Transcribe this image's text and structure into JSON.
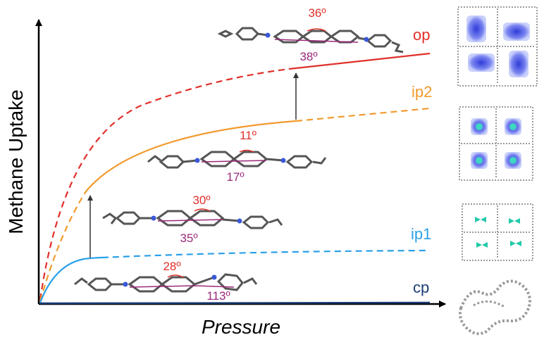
{
  "chart_data": {
    "type": "line",
    "xlabel": "Pressure",
    "ylabel": "Methane Uptake",
    "grid": false,
    "legend": "labels at right end of each curve",
    "series": [
      {
        "name": "op",
        "color": "#e0302a"
      },
      {
        "name": "ip2",
        "color": "#f29a2e"
      },
      {
        "name": "ip1",
        "color": "#2aa0e8"
      },
      {
        "name": "cp",
        "color": "#1d3f78"
      }
    ],
    "annotations": {
      "op_angles": [
        "36º",
        "38º"
      ],
      "ip2_angles": [
        "11º",
        "17º"
      ],
      "ip1_angles": [
        "30º",
        "35º"
      ],
      "cp_angles": [
        "28º",
        "113º"
      ]
    },
    "angle_colors": {
      "top": "#e0302a",
      "bottom": "#9a2a7a"
    }
  }
}
